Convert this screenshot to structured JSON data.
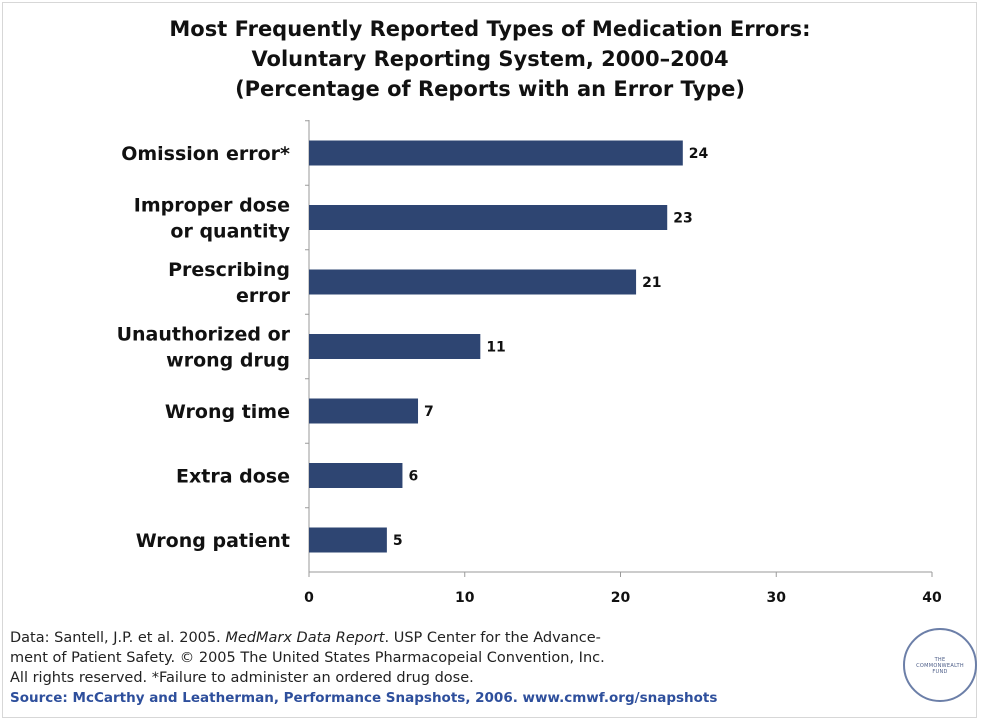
{
  "title": {
    "line1": "Most Frequently Reported Types of Medication Errors:",
    "line2": "Voluntary Reporting System, 2000–2004",
    "line3": "(Percentage of Reports with an Error Type)"
  },
  "chart_data": {
    "type": "bar",
    "orientation": "horizontal",
    "title": "Most Frequently Reported Types of Medication Errors: Voluntary Reporting System, 2000–2004 (Percentage of Reports with an Error Type)",
    "categories": [
      [
        "Omission error*"
      ],
      [
        "Improper dose",
        "or quantity"
      ],
      [
        "Prescribing",
        "error"
      ],
      [
        "Unauthorized or",
        "wrong drug"
      ],
      [
        "Wrong time"
      ],
      [
        "Extra dose"
      ],
      [
        "Wrong patient"
      ]
    ],
    "values": [
      24,
      23,
      21,
      11,
      7,
      6,
      5
    ],
    "xlim": [
      0,
      40
    ],
    "xticks": [
      0,
      10,
      20,
      30,
      40
    ],
    "grid": false,
    "legend": "none",
    "bar_color": "#2e4572"
  },
  "footer": {
    "data_prefix": "Data: Santell, J.P. et al. 2005. ",
    "data_italic": "MedMarx Data Report",
    "data_suffix": ". USP Center for the Advance-",
    "line2": "ment of Patient Safety. © 2005 The United States Pharmacopeial Convention, Inc.",
    "line3": "All rights reserved. *Failure to administer an ordered drug dose.",
    "source": "Source: McCarthy and Leatherman, Performance Snapshots, 2006. www.cmwf.org/snapshots"
  },
  "seal": {
    "text_line1": "THE",
    "text_line2": "COMMONWEALTH",
    "text_line3": "FUND"
  }
}
